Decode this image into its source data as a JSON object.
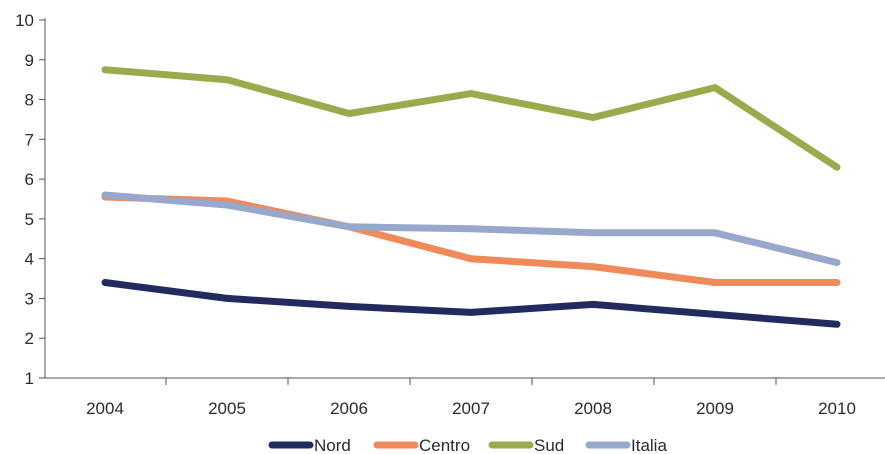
{
  "chart_data": {
    "type": "line",
    "title": "",
    "xlabel": "",
    "ylabel": "",
    "categories": [
      "2004",
      "2005",
      "2006",
      "2007",
      "2008",
      "2009",
      "2010"
    ],
    "ylim": [
      1,
      10
    ],
    "yticks": [
      "1",
      "2",
      "3",
      "4",
      "5",
      "6",
      "7",
      "8",
      "9",
      "10"
    ],
    "grid": false,
    "legend_position": "bottom",
    "series": [
      {
        "name": "Nord",
        "color": "#222a60",
        "values": [
          3.4,
          3.0,
          2.8,
          2.65,
          2.85,
          2.6,
          2.35
        ]
      },
      {
        "name": "Centro",
        "color": "#f08a5a",
        "values": [
          5.55,
          5.45,
          4.8,
          4.0,
          3.8,
          3.4,
          3.4
        ]
      },
      {
        "name": "Sud",
        "color": "#9caa4e",
        "values": [
          8.75,
          8.5,
          7.65,
          8.15,
          7.55,
          8.3,
          6.3
        ]
      },
      {
        "name": "Italia",
        "color": "#98a7cc",
        "values": [
          5.6,
          5.35,
          4.8,
          4.75,
          4.65,
          4.65,
          3.9
        ]
      }
    ]
  }
}
